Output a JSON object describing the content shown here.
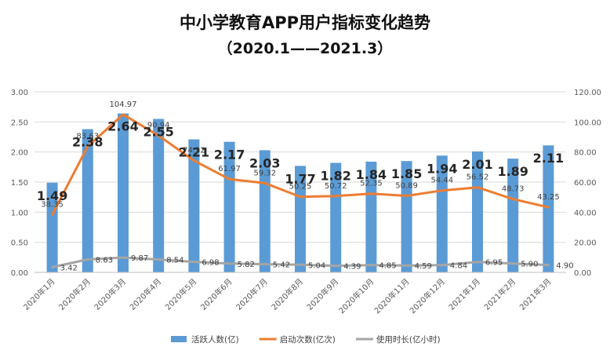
{
  "chart_data": {
    "type": "bar",
    "title": "中小学教育APP用户指标变化趋势",
    "subtitle": "（2020.1——2021.3）",
    "categories": [
      "2020年1月",
      "2020年2月",
      "2020年3月",
      "2020年4月",
      "2020年5月",
      "2020年6月",
      "2020年7月",
      "2020年8月",
      "2020年9月",
      "2020年10月",
      "2020年11月",
      "2020年12月",
      "2021年1月",
      "2021年2月",
      "2021年3月"
    ],
    "left_axis": {
      "ylim": [
        0,
        3
      ],
      "ticks": [
        "0.00",
        "0.50",
        "1.00",
        "1.50",
        "2.00",
        "2.50",
        "3.00"
      ]
    },
    "right_axis": {
      "ylim": [
        0,
        120
      ],
      "ticks": [
        "0.00",
        "20.00",
        "40.00",
        "60.00",
        "80.00",
        "100.00",
        "120.00"
      ]
    },
    "grid": true,
    "legend_position": "bottom",
    "series": [
      {
        "name": "活跃人数(亿)",
        "type": "bar",
        "axis": "left",
        "color": "#5b9bd5",
        "values": [
          1.49,
          2.38,
          2.64,
          2.55,
          2.21,
          2.17,
          2.03,
          1.77,
          1.82,
          1.84,
          1.85,
          1.94,
          2.01,
          1.89,
          2.11
        ],
        "labels": [
          "1.49",
          "2.38",
          "2.64",
          "2.55",
          "2.21",
          "2.17",
          "2.03",
          "1.77",
          "1.82",
          "1.84",
          "1.85",
          "1.94",
          "2.01",
          "1.89",
          "2.11"
        ]
      },
      {
        "name": "启动次数(亿次)",
        "type": "line",
        "axis": "right",
        "color": "#ed7d31",
        "values": [
          38.35,
          83.63,
          104.97,
          90.94,
          74.32,
          61.97,
          59.32,
          50.25,
          50.72,
          52.35,
          50.89,
          54.44,
          56.52,
          48.73,
          43.25
        ],
        "labels": [
          "38.35",
          "83.63",
          "104.97",
          "90.94",
          "74.32",
          "61.97",
          "59.32",
          "50.25",
          "50.72",
          "52.35",
          "50.89",
          "54.44",
          "56.52",
          "48.73",
          "43.25"
        ]
      },
      {
        "name": "使用时长(亿小时)",
        "type": "line",
        "axis": "right",
        "color": "#a5a5a5",
        "values": [
          3.42,
          8.63,
          9.87,
          8.54,
          6.98,
          5.82,
          5.42,
          5.04,
          4.39,
          4.85,
          4.59,
          4.84,
          6.95,
          5.9,
          4.9
        ],
        "labels": [
          "3.42",
          "8.63",
          "9.87",
          "8.54",
          "6.98",
          "5.82",
          "5.42",
          "5.04",
          "4.39",
          "4.85",
          "4.59",
          "4.84",
          "6.95",
          "5.90",
          "4.90"
        ]
      }
    ]
  }
}
